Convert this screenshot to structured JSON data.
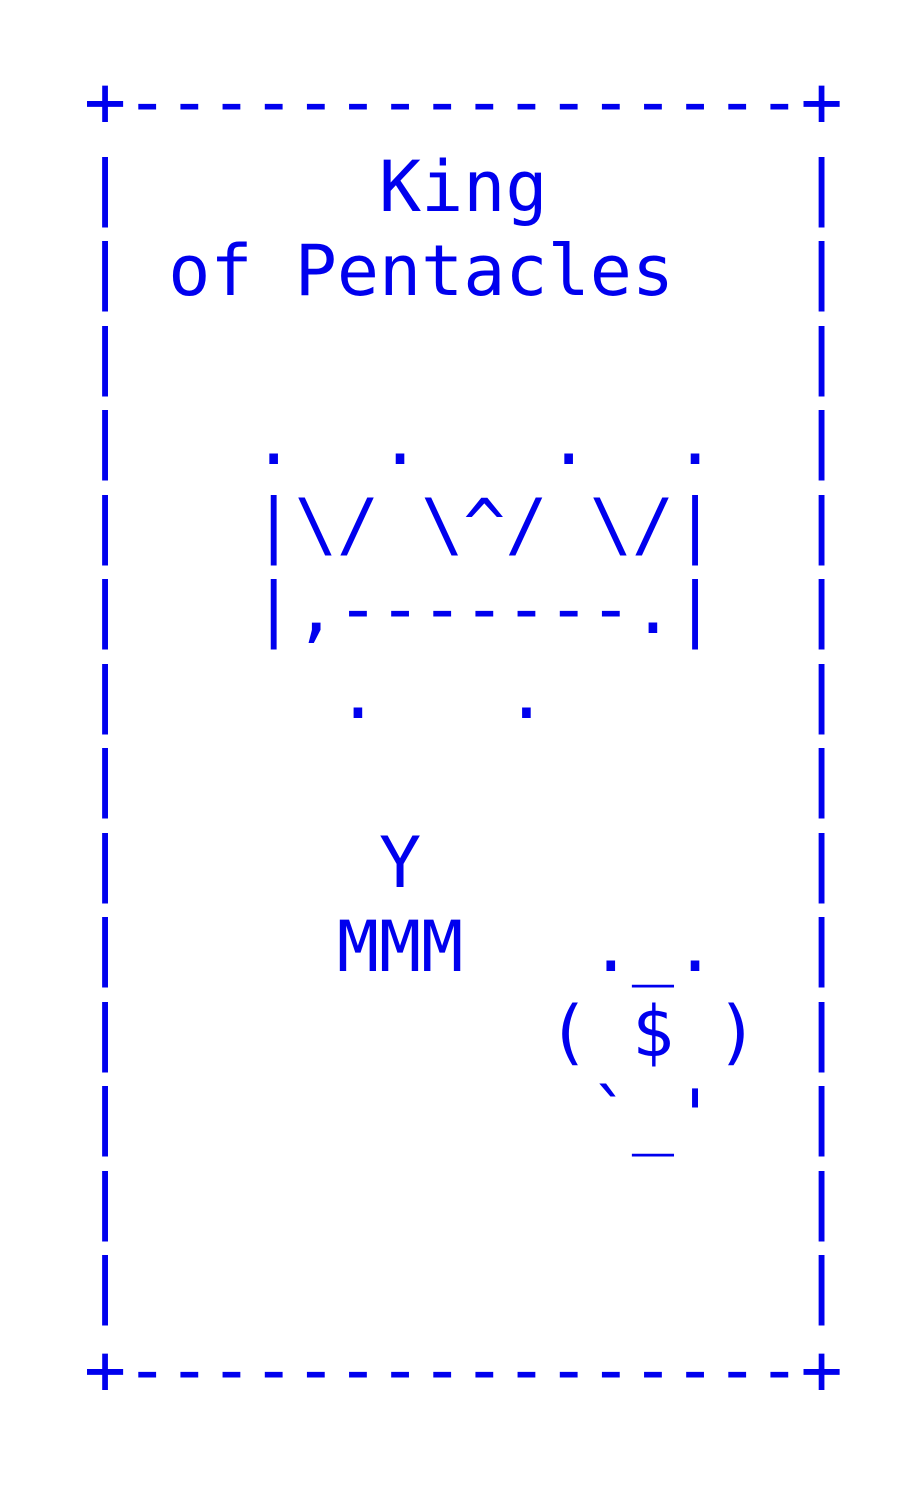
{
  "card": {
    "lines": [
      "+----------------+",
      "|      King      |",
      "| of Pentacles   |",
      "|                |",
      "|   .  .   .  .  |",
      "|   |\\/ \\^/ \\/|  |",
      "|   |,-------.|  |",
      "|     .   .      |",
      "|                |",
      "|      Y         |",
      "|     MMM   ._.  |",
      "|          ( $ ) |",
      "|           `_'  |",
      "|                |",
      "|                |",
      "+----------------+"
    ]
  }
}
